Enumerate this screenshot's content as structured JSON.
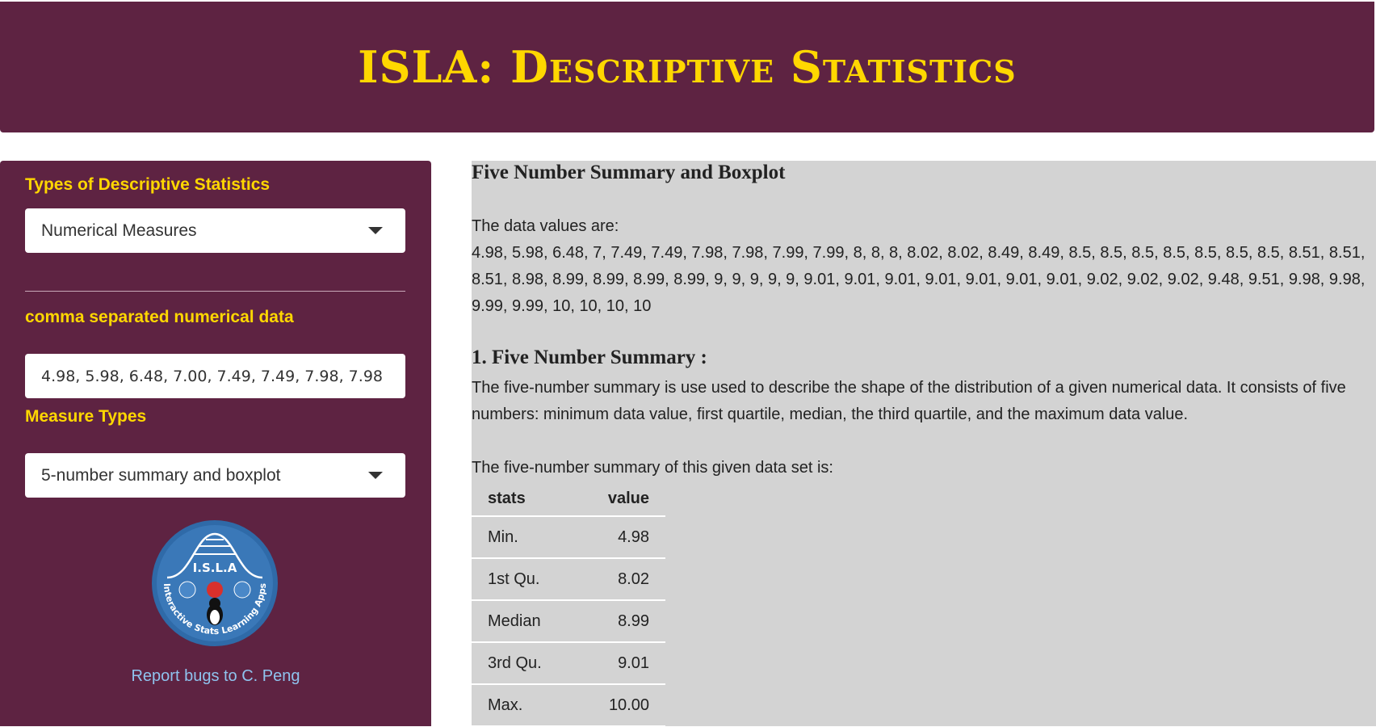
{
  "header": {
    "title": "ISLA: Descriptive Statistics"
  },
  "sidebar": {
    "stats_type_label": "Types of Descriptive Statistics",
    "stats_type_value": "Numerical Measures",
    "data_label": "comma separated numerical data",
    "data_value": "4.98, 5.98, 6.48, 7.00, 7.49, 7.49, 7.98, 7.98",
    "measure_label": "Measure Types",
    "measure_value": "5-number summary and boxplot",
    "logo_text": "I.S.L.A",
    "logo_ring_text": "Interactive Stats Learning Apps",
    "report_link": "Report bugs to C. Peng"
  },
  "main": {
    "title": "Five Number Summary and Boxplot",
    "data_intro": "The data values are:",
    "data_values": "4.98, 5.98, 6.48, 7, 7.49, 7.49, 7.98, 7.98, 7.99, 7.99, 8, 8, 8, 8.02, 8.02, 8.49, 8.49, 8.5, 8.5, 8.5, 8.5, 8.5, 8.5, 8.5, 8.51, 8.51, 8.51, 8.98, 8.99, 8.99, 8.99, 8.99, 9, 9, 9, 9, 9, 9.01, 9.01, 9.01, 9.01, 9.01, 9.01, 9.01, 9.02, 9.02, 9.02, 9.48, 9.51, 9.98, 9.98, 9.99, 9.99, 10, 10, 10, 10",
    "section_title": "1. Five Number Summary :",
    "section_desc": "The five-number summary is use used to describe the shape of the distribution of a given numerical data. It consists of five numbers: minimum data value, first quartile, median, the third quartile, and the maximum data value.",
    "summary_intro": "The five-number summary of this given data set is:",
    "table": {
      "headers": [
        "stats",
        "value"
      ],
      "rows": [
        {
          "stat": "Min.",
          "value": "4.98"
        },
        {
          "stat": "1st Qu.",
          "value": "8.02"
        },
        {
          "stat": "Median",
          "value": "8.99"
        },
        {
          "stat": "3rd Qu.",
          "value": "9.01"
        },
        {
          "stat": "Max.",
          "value": "10.00"
        }
      ]
    }
  },
  "colors": {
    "brand": "#5e2342",
    "accent": "#ffd700",
    "link": "#8fc3ee",
    "panel": "#d3d3d3"
  }
}
